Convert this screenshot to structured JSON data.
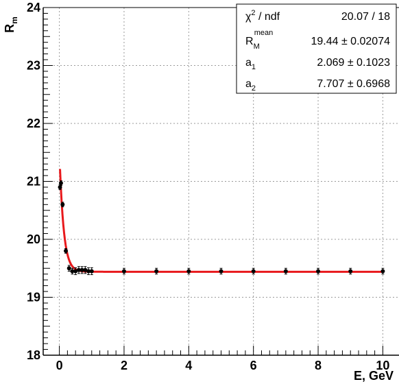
{
  "chart_data": {
    "type": "scatter",
    "x_axis": {
      "label": "E, GeV",
      "range": [
        -0.5,
        10.5
      ],
      "ticks": [
        0,
        2,
        4,
        6,
        8,
        10
      ],
      "tick_labels": [
        "0",
        "2",
        "4",
        "6",
        "8",
        "10"
      ],
      "minor_step": 0.25
    },
    "y_axis": {
      "label_main": "R",
      "label_sub": "m",
      "range": [
        18,
        24
      ],
      "ticks": [
        18,
        19,
        20,
        21,
        22,
        23,
        24
      ],
      "tick_labels": [
        "18",
        "19",
        "20",
        "21",
        "22",
        "23",
        "24"
      ],
      "minor_step": 0.1
    },
    "grid": true,
    "series": [
      {
        "points": [
          {
            "x": 0.02,
            "y": 20.9,
            "err": 0.04
          },
          {
            "x": 0.05,
            "y": 20.97,
            "err": 0.04
          },
          {
            "x": 0.1,
            "y": 20.6,
            "err": 0.04
          },
          {
            "x": 0.2,
            "y": 19.8,
            "err": 0.04
          },
          {
            "x": 0.3,
            "y": 19.5,
            "err": 0.05
          },
          {
            "x": 0.4,
            "y": 19.45,
            "err": 0.05
          },
          {
            "x": 0.5,
            "y": 19.45,
            "err": 0.06
          },
          {
            "x": 0.6,
            "y": 19.47,
            "err": 0.06
          },
          {
            "x": 0.7,
            "y": 19.47,
            "err": 0.06
          },
          {
            "x": 0.8,
            "y": 19.47,
            "err": 0.06
          },
          {
            "x": 0.9,
            "y": 19.45,
            "err": 0.06
          },
          {
            "x": 1.0,
            "y": 19.45,
            "err": 0.06
          },
          {
            "x": 2.0,
            "y": 19.45,
            "err": 0.05
          },
          {
            "x": 3.0,
            "y": 19.45,
            "err": 0.05
          },
          {
            "x": 4.0,
            "y": 19.45,
            "err": 0.05
          },
          {
            "x": 5.0,
            "y": 19.45,
            "err": 0.05
          },
          {
            "x": 6.0,
            "y": 19.45,
            "err": 0.05
          },
          {
            "x": 7.0,
            "y": 19.45,
            "err": 0.05
          },
          {
            "x": 8.0,
            "y": 19.45,
            "err": 0.05
          },
          {
            "x": 9.0,
            "y": 19.45,
            "err": 0.05
          },
          {
            "x": 10.0,
            "y": 19.45,
            "err": 0.05
          }
        ]
      }
    ],
    "fit": {
      "mean": 19.44,
      "a1": 2.069,
      "a2": 7.707,
      "x_start": 0.02,
      "x_end": 10.0,
      "color": "#e8191c"
    },
    "stats_box": {
      "rows": [
        {
          "name_main": "χ",
          "name_sup": "2",
          "name_tail": " / ndf",
          "value": "20.07 / 18"
        },
        {
          "name_main": "R",
          "name_sub": "M",
          "name_sup": "mean",
          "value": "19.44 ± 0.02074"
        },
        {
          "name_main": "a",
          "name_sub": "1",
          "value": "2.069 ± 0.1023"
        },
        {
          "name_main": "a",
          "name_sub": "2",
          "value": "7.707 ± 0.6968"
        }
      ]
    }
  }
}
